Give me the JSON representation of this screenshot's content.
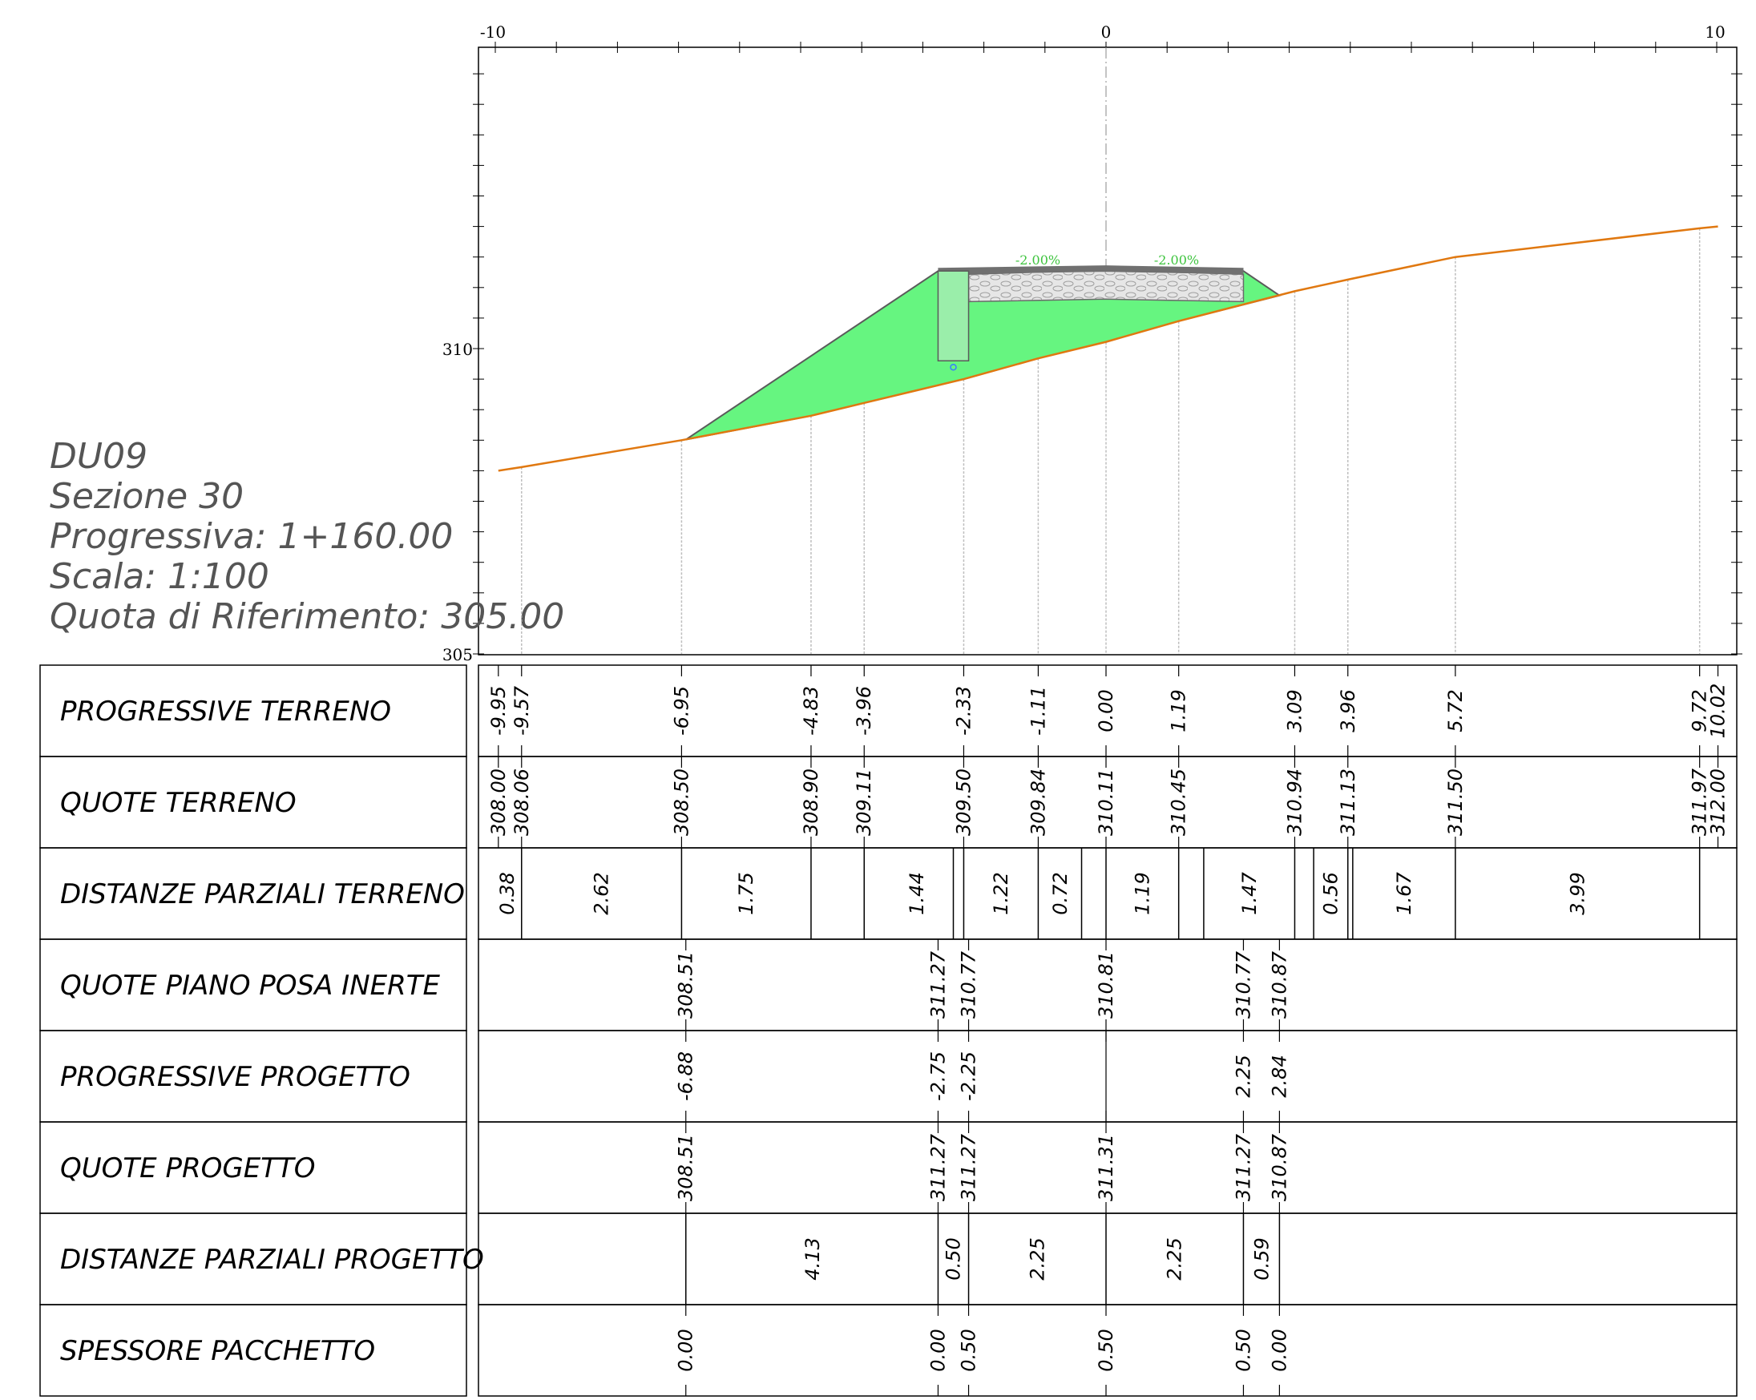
{
  "section_info": {
    "code": "DU09",
    "section": "Sezione 30",
    "chainage": "Progressiva: 1+160.00",
    "scale": "Scala: 1:100",
    "reference": "Quota di Riferimento: 305.00"
  },
  "axes": {
    "x_ticks": [
      "-10",
      "0",
      "10"
    ],
    "y_ticks": [
      "310",
      "305"
    ],
    "x_range": [
      -10,
      10
    ],
    "y_range": [
      305,
      315
    ]
  },
  "slopes": [
    "-2.00%",
    "-2.00%"
  ],
  "colors": {
    "ground_line": "#e07810",
    "fill": "#66f580",
    "drain": "#9aeeaa",
    "pavement": "#707070",
    "gravel": "#e6e6e6",
    "slope_text": "#3ec43e"
  },
  "profile": {
    "ground": [
      [
        -9.95,
        308.0
      ],
      [
        -9.57,
        308.06
      ],
      [
        -6.95,
        308.5
      ],
      [
        -4.83,
        308.9
      ],
      [
        -3.96,
        309.11
      ],
      [
        -2.33,
        309.5
      ],
      [
        -1.11,
        309.84
      ],
      [
        0.0,
        310.11
      ],
      [
        1.19,
        310.45
      ],
      [
        3.09,
        310.94
      ],
      [
        3.96,
        311.13
      ],
      [
        5.72,
        311.5
      ],
      [
        9.72,
        311.97
      ],
      [
        10.02,
        312.0
      ]
    ],
    "embankment": [
      [
        -6.88,
        308.51
      ],
      [
        -2.75,
        311.27
      ],
      [
        2.25,
        311.27
      ],
      [
        2.84,
        310.87
      ]
    ],
    "drain": {
      "x_from": -2.75,
      "x_to": -2.25,
      "y_from": 309.8,
      "y_to": 311.27
    }
  },
  "table": {
    "rows": [
      {
        "label": "PROGRESSIVE TERRENO",
        "values": [
          {
            "x": -9.95,
            "text": "-9.95"
          },
          {
            "x": -9.57,
            "text": "-9.57"
          },
          {
            "x": -6.95,
            "text": "-6.95"
          },
          {
            "x": -4.83,
            "text": "-4.83"
          },
          {
            "x": -3.96,
            "text": "-3.96"
          },
          {
            "x": -2.33,
            "text": "-2.33"
          },
          {
            "x": -1.11,
            "text": "-1.11"
          },
          {
            "x": 0.0,
            "text": "0.00"
          },
          {
            "x": 1.19,
            "text": "1.19"
          },
          {
            "x": 3.09,
            "text": "3.09"
          },
          {
            "x": 3.96,
            "text": "3.96"
          },
          {
            "x": 5.72,
            "text": "5.72"
          },
          {
            "x": 9.72,
            "text": "9.72"
          },
          {
            "x": 10.02,
            "text": "10.02"
          }
        ]
      },
      {
        "label": "QUOTE TERRENO",
        "values": [
          {
            "x": -9.95,
            "text": "308.00"
          },
          {
            "x": -9.57,
            "text": "308.06"
          },
          {
            "x": -6.95,
            "text": "308.50"
          },
          {
            "x": -4.83,
            "text": "308.90"
          },
          {
            "x": -3.96,
            "text": "309.11"
          },
          {
            "x": -2.33,
            "text": "309.50"
          },
          {
            "x": -1.11,
            "text": "309.84"
          },
          {
            "x": 0.0,
            "text": "310.11"
          },
          {
            "x": 1.19,
            "text": "310.45"
          },
          {
            "x": 3.09,
            "text": "310.94"
          },
          {
            "x": 3.96,
            "text": "311.13"
          },
          {
            "x": 5.72,
            "text": "311.50"
          },
          {
            "x": 9.72,
            "text": "311.97"
          },
          {
            "x": 10.02,
            "text": "312.00"
          }
        ]
      },
      {
        "label": "DISTANZE PARZIALI TERRENO",
        "dividers": [
          -9.57,
          -6.95,
          -4.83,
          -3.96,
          -2.5,
          -2.33,
          -1.11,
          -0.4,
          0.0,
          1.19,
          1.6,
          3.09,
          3.4,
          3.96,
          4.04,
          5.72,
          9.72
        ],
        "values": [
          {
            "x": -9.8,
            "text": "0.38"
          },
          {
            "x": -8.26,
            "text": "2.62"
          },
          {
            "x": -5.89,
            "text": "1.75"
          },
          {
            "x": -3.1,
            "text": "1.44"
          },
          {
            "x": -1.72,
            "text": "1.22"
          },
          {
            "x": -0.75,
            "text": "0.72"
          },
          {
            "x": 0.6,
            "text": "1.19"
          },
          {
            "x": 2.35,
            "text": "1.47"
          },
          {
            "x": 3.68,
            "text": "0.56"
          },
          {
            "x": 4.88,
            "text": "1.67"
          },
          {
            "x": 7.72,
            "text": "3.99"
          }
        ]
      },
      {
        "label": "QUOTE PIANO POSA INERTE",
        "values": [
          {
            "x": -6.88,
            "text": "308.51"
          },
          {
            "x": -2.75,
            "text": "311.27"
          },
          {
            "x": -2.25,
            "text": "310.77"
          },
          {
            "x": 0.0,
            "text": "310.81"
          },
          {
            "x": 2.25,
            "text": "310.77"
          },
          {
            "x": 2.84,
            "text": "310.87"
          }
        ]
      },
      {
        "label": "PROGRESSIVE PROGETTO",
        "values": [
          {
            "x": -6.88,
            "text": "-6.88"
          },
          {
            "x": -2.75,
            "text": "-2.75"
          },
          {
            "x": -2.25,
            "text": "-2.25"
          },
          {
            "x": 0.0,
            "text": ""
          },
          {
            "x": 2.25,
            "text": "2.25"
          },
          {
            "x": 2.84,
            "text": "2.84"
          }
        ]
      },
      {
        "label": "QUOTE PROGETTO",
        "values": [
          {
            "x": -6.88,
            "text": "308.51"
          },
          {
            "x": -2.75,
            "text": "311.27"
          },
          {
            "x": -2.25,
            "text": "311.27"
          },
          {
            "x": 0.0,
            "text": "311.31"
          },
          {
            "x": 2.25,
            "text": "311.27"
          },
          {
            "x": 2.84,
            "text": "310.87"
          }
        ]
      },
      {
        "label": "DISTANZE PARZIALI PROGETTO",
        "dividers": [
          -6.88,
          -2.75,
          -2.25,
          0.0,
          2.25,
          2.84
        ],
        "values": [
          {
            "x": -4.8,
            "text": "4.13"
          },
          {
            "x": -2.5,
            "text": "0.50"
          },
          {
            "x": -1.12,
            "text": "2.25"
          },
          {
            "x": 1.12,
            "text": "2.25"
          },
          {
            "x": 2.55,
            "text": "0.59"
          }
        ]
      },
      {
        "label": "SPESSORE PACCHETTO",
        "values": [
          {
            "x": -6.88,
            "text": "0.00"
          },
          {
            "x": -2.75,
            "text": "0.00"
          },
          {
            "x": -2.25,
            "text": "0.50"
          },
          {
            "x": 0.0,
            "text": "0.50"
          },
          {
            "x": 2.25,
            "text": "0.50"
          },
          {
            "x": 2.84,
            "text": "0.00"
          }
        ]
      }
    ]
  }
}
